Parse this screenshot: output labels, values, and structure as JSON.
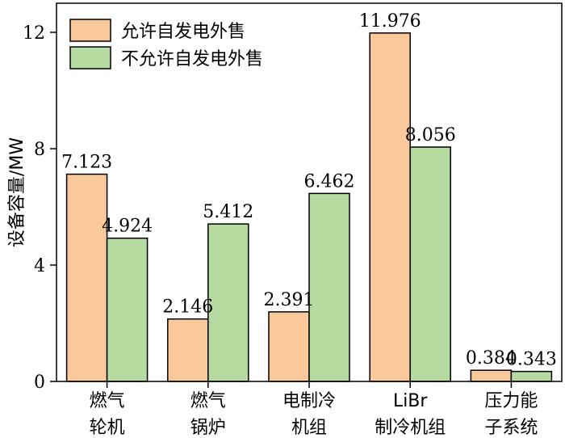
{
  "chart_data": {
    "type": "bar",
    "title": "",
    "xlabel": "",
    "ylabel": "设备容量/MW",
    "ylim": [
      0,
      13
    ],
    "yticks": [
      0,
      4,
      8,
      12
    ],
    "grid": false,
    "legend_position": "top-left",
    "categories": [
      [
        "燃气",
        "轮机"
      ],
      [
        "燃气",
        "锅炉"
      ],
      [
        "电制冷",
        "机组"
      ],
      [
        "LiBr",
        "制冷机组"
      ],
      [
        "压力能",
        "子系统"
      ]
    ],
    "series": [
      {
        "name": "允许自发电外售",
        "color": "#f9c89b",
        "values": [
          7.123,
          2.146,
          2.391,
          11.976,
          0.384
        ]
      },
      {
        "name": "不允许自发电外售",
        "color": "#b5dba1",
        "values": [
          4.924,
          5.412,
          6.462,
          8.056,
          0.343
        ]
      }
    ]
  }
}
